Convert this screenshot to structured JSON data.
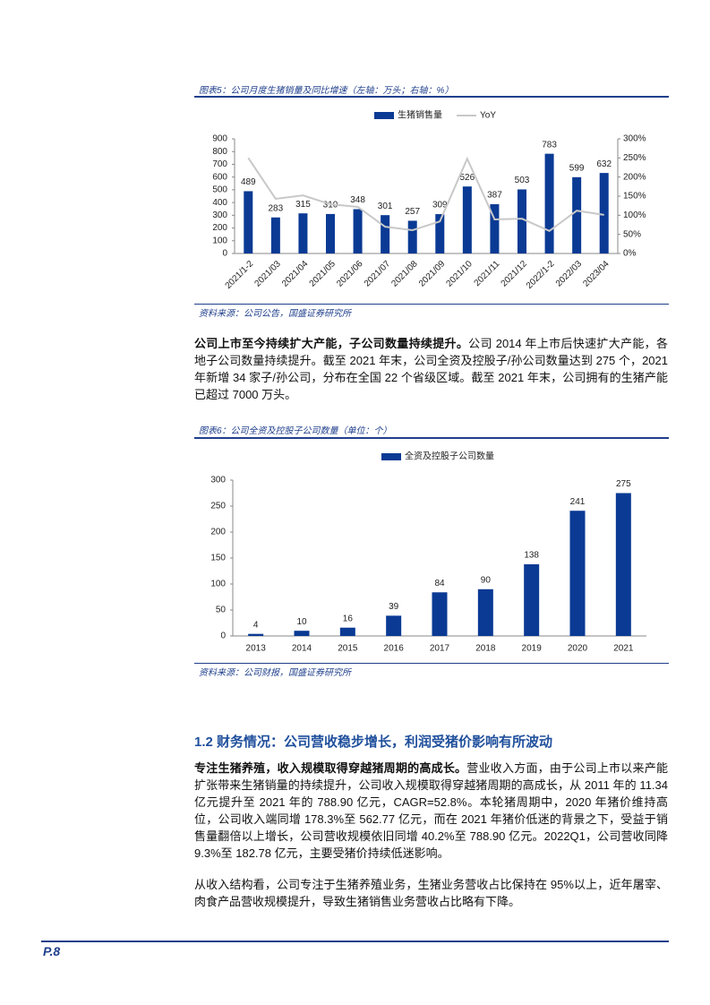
{
  "chart_data": [
    {
      "type": "bar",
      "categories": [
        "2021/1-2",
        "2021/03",
        "2021/04",
        "2021/05",
        "2021/06",
        "2021/07",
        "2021/08",
        "2021/09",
        "2021/10",
        "2021/11",
        "2021/12",
        "2022/1-2",
        "2022/03",
        "2023/04"
      ],
      "series": [
        {
          "name": "生猪销售量",
          "color": "#0a3a94",
          "values": [
            489,
            283,
            315,
            310,
            348,
            301,
            257,
            309,
            526,
            387,
            503,
            783,
            599,
            632
          ]
        },
        {
          "name": "YoY",
          "type": "line",
          "axis": "y2",
          "color": "#c8c8c8",
          "values": [
            250,
            143,
            152,
            129,
            122,
            70,
            61,
            84,
            248,
            89,
            91,
            59,
            112,
            101
          ]
        }
      ],
      "ylim": [
        0,
        900
      ],
      "yticks": [
        0,
        100,
        200,
        300,
        400,
        500,
        600,
        700,
        800,
        900
      ],
      "y2lim": [
        0,
        300
      ],
      "y2ticks": [
        {
          "value": 0,
          "label": "0%"
        },
        {
          "value": 50,
          "label": "50%"
        },
        {
          "value": 100,
          "label": "100%"
        },
        {
          "value": 150,
          "label": "150%"
        },
        {
          "value": 200,
          "label": "200%"
        },
        {
          "value": 250,
          "label": "250%"
        },
        {
          "value": 300,
          "label": "300%"
        }
      ],
      "grid": false
    },
    {
      "type": "bar",
      "categories": [
        "2013",
        "2014",
        "2015",
        "2016",
        "2017",
        "2018",
        "2019",
        "2020",
        "2021"
      ],
      "series": [
        {
          "name": "全资及控股子公司数量",
          "color": "#0a3a94",
          "values": [
            4,
            10,
            16,
            39,
            84,
            90,
            138,
            241,
            275
          ]
        }
      ],
      "ylim": [
        0,
        300
      ],
      "yticks": [
        0,
        50,
        100,
        150,
        200,
        250,
        300
      ],
      "grid": false
    }
  ],
  "document": {
    "figure_captions": [
      "图表5：公司月度生猪销量及同比增速（左轴：万头；右轴：%）",
      "图表6：公司全资及控股子公司数量（单位：个）"
    ],
    "figure_sources": [
      "资料来源：公司公告，国盛证券研究所",
      "资料来源：公司财报，国盛证券研究所"
    ],
    "paragraph_1": {
      "lead": "公司上市至今持续扩大产能，子公司数量持续提升。",
      "text": "公司 2014 年上市后快速扩大产能，各地子公司数量持续提升。截至 2021 年末，公司全资及控股子/孙公司数量达到 275 个，2021 年新增 34 家子/孙公司，分布在全国 22 个省级区域。截至 2021 年末，公司拥有的生猪产能已超过 7000 万头。"
    },
    "heading": "1.2 财务情况：公司营收稳步增长，利润受猪价影响有所波动",
    "paragraph_2": {
      "lead": "专注生猪养殖，收入规模取得穿越猪周期的高成长。",
      "text": "营业收入方面，由于公司上市以来产能扩张带来生猪销量的持续提升，公司收入规模取得穿越猪周期的高成长，从 2011 年的 11.34 亿元提升至 2021 年的 788.90 亿元，CAGR=52.8%。本轮猪周期中，2020 年猪价维持高位，公司收入端同增 178.3%至 562.77 亿元，而在 2021 年猪价低迷的背景之下，受益于销售量翻倍以上增长，公司营收规模依旧同增 40.2%至 788.90 亿元。2022Q1，公司营收同降 9.3%至 182.78 亿元，主要受猪价持续低迷影响。"
    },
    "paragraph_3": {
      "text": "从收入结构看，公司专注于生猪养殖业务，生猪业务营收占比保持在 95%以上，近年屠宰、肉食产品营收规模提升，导致生猪销售业务营收占比略有下降。"
    },
    "page_number": "P.8"
  }
}
